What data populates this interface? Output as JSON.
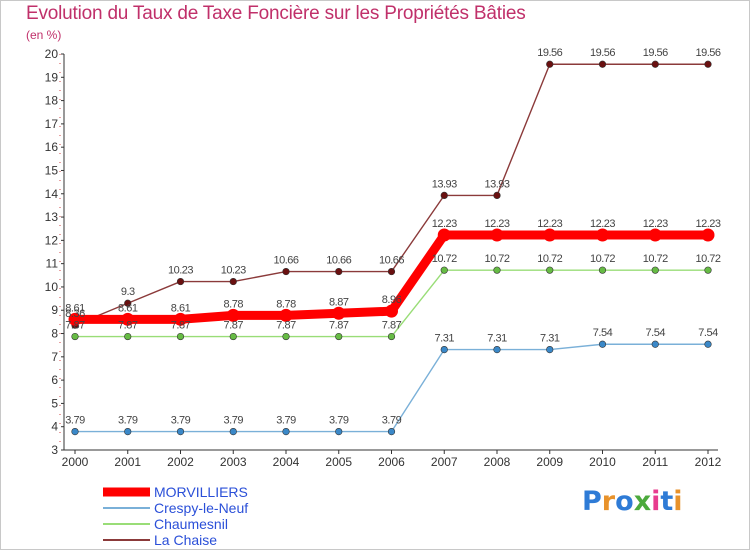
{
  "title": "Evolution du Taux de Taxe Foncière sur les Propriétés Bâties",
  "unit": "(en %)",
  "logo": {
    "text": "Proxiti",
    "letter_colors": [
      "#2e7bd6",
      "#e8922b",
      "#2e7bd6",
      "#4caa3c",
      "#e83c8e",
      "#2e7bd6",
      "#e8922b"
    ]
  },
  "chart_data": {
    "type": "line",
    "title": "Evolution du Taux de Taxe Foncière sur les Propriétés Bâties",
    "ylabel": "(en %)",
    "xlabel": "",
    "ylim": [
      3,
      20
    ],
    "yticks": [
      3,
      4,
      5,
      6,
      7,
      8,
      9,
      10,
      11,
      12,
      13,
      14,
      15,
      16,
      17,
      18,
      19,
      20
    ],
    "categories": [
      "2000",
      "2001",
      "2002",
      "2003",
      "2004",
      "2005",
      "2006",
      "2007",
      "2008",
      "2009",
      "2010",
      "2011",
      "2012"
    ],
    "grid": false,
    "legend_position": "bottom-left",
    "series": [
      {
        "name": "La Chaise",
        "color": "#8b3a3a",
        "marker_color": "#6a1010",
        "values": [
          8.36,
          9.3,
          10.23,
          10.23,
          10.66,
          10.66,
          10.66,
          13.93,
          13.93,
          19.56,
          19.56,
          19.56,
          19.56
        ],
        "labels": [
          "8.36",
          "9.3",
          "10.23",
          "10.23",
          "10.66",
          "10.66",
          "10.66",
          "13.93",
          "13.93",
          "19.56",
          "19.56",
          "19.56",
          "19.56"
        ]
      },
      {
        "name": "Chaumesnil",
        "color": "#99dd77",
        "marker_color": "#66bb44",
        "values": [
          7.87,
          7.87,
          7.87,
          7.87,
          7.87,
          7.87,
          7.87,
          10.72,
          10.72,
          10.72,
          10.72,
          10.72,
          10.72
        ],
        "labels": [
          "7.87",
          "7.87",
          "7.87",
          "7.87",
          "7.87",
          "7.87",
          "7.87",
          "10.72",
          "10.72",
          "10.72",
          "10.72",
          "10.72",
          "10.72"
        ]
      },
      {
        "name": "Crespy-le-Neuf",
        "color": "#7ab0d8",
        "marker_color": "#3a88c8",
        "values": [
          3.79,
          3.79,
          3.79,
          3.79,
          3.79,
          3.79,
          3.79,
          7.31,
          7.31,
          7.31,
          7.54,
          7.54,
          7.54
        ],
        "labels": [
          "3.79",
          "3.79",
          "3.79",
          "3.79",
          "3.79",
          "3.79",
          "3.79",
          "7.31",
          "7.31",
          "7.31",
          "7.54",
          "7.54",
          "7.54"
        ]
      },
      {
        "name": "MORVILLIERS",
        "color": "#ff0000",
        "marker_color": "#ff0000",
        "values": [
          8.61,
          8.61,
          8.61,
          8.78,
          8.78,
          8.87,
          8.96,
          12.23,
          12.23,
          12.23,
          12.23,
          12.23,
          12.23
        ],
        "labels": [
          "8.61",
          "8.61",
          "8.61",
          "8.78",
          "8.78",
          "8.87",
          "8.96",
          "12.23",
          "12.23",
          "12.23",
          "12.23",
          "12.23",
          "12.23"
        ]
      }
    ],
    "legend": [
      {
        "name": "MORVILLIERS",
        "color": "#ff0000",
        "text_color": "#2a4fd8"
      },
      {
        "name": "Crespy-le-Neuf",
        "color": "#7ab0d8",
        "text_color": "#2a4fd8"
      },
      {
        "name": "Chaumesnil",
        "color": "#99dd77",
        "text_color": "#2a4fd8"
      },
      {
        "name": "La Chaise",
        "color": "#8b3a3a",
        "text_color": "#2a4fd8"
      }
    ]
  }
}
